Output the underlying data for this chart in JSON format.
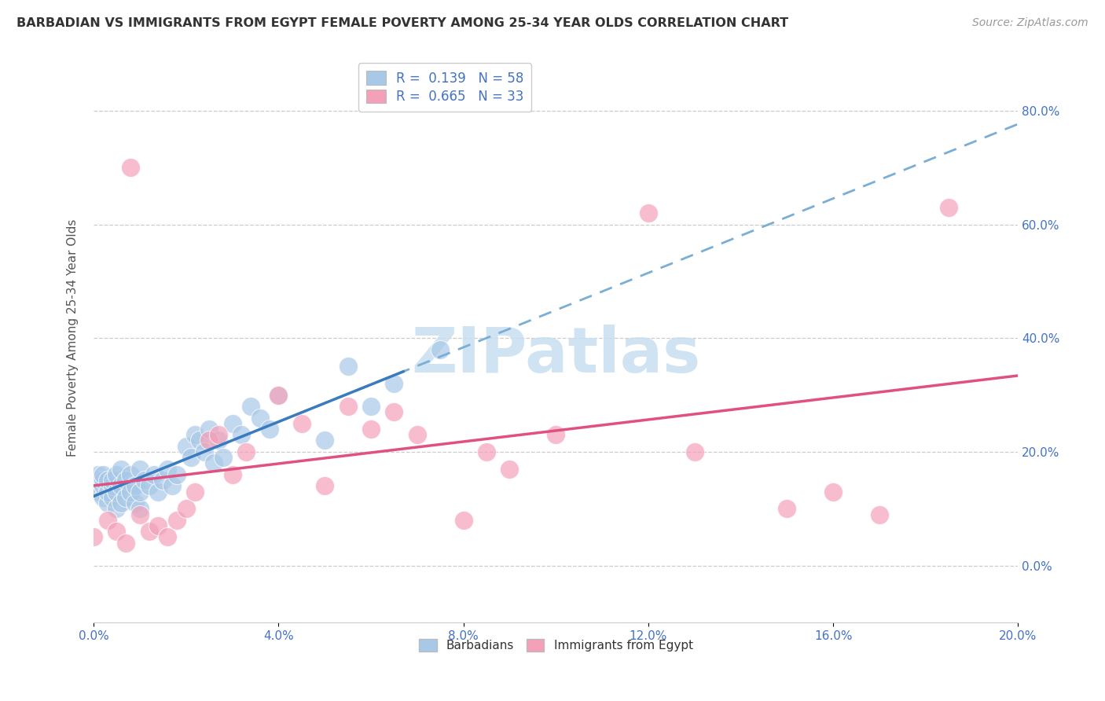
{
  "title": "BARBADIAN VS IMMIGRANTS FROM EGYPT FEMALE POVERTY AMONG 25-34 YEAR OLDS CORRELATION CHART",
  "source": "Source: ZipAtlas.com",
  "ylabel": "Female Poverty Among 25-34 Year Olds",
  "legend1_label": "R =  0.139   N = 58",
  "legend2_label": "R =  0.665   N = 33",
  "blue_color": "#a8c8e8",
  "pink_color": "#f4a0b8",
  "blue_line_color": "#3a7abf",
  "pink_line_color": "#e05080",
  "blue_dash_color": "#7aaed4",
  "watermark_color": "#c8dff0",
  "xlim": [
    0.0,
    0.2
  ],
  "ylim": [
    -0.1,
    0.9
  ],
  "xticks": [
    0.0,
    0.04,
    0.08,
    0.12,
    0.16,
    0.2
  ],
  "yticks": [
    0.0,
    0.2,
    0.4,
    0.6,
    0.8
  ],
  "R_barbadian": 0.139,
  "R_egypt": 0.665,
  "N_barbadian": 58,
  "N_egypt": 33,
  "barb_x": [
    0.0,
    0.0,
    0.001,
    0.001,
    0.001,
    0.002,
    0.002,
    0.002,
    0.002,
    0.003,
    0.003,
    0.003,
    0.004,
    0.004,
    0.004,
    0.005,
    0.005,
    0.005,
    0.006,
    0.006,
    0.006,
    0.007,
    0.007,
    0.008,
    0.008,
    0.009,
    0.009,
    0.01,
    0.01,
    0.01,
    0.011,
    0.012,
    0.013,
    0.014,
    0.015,
    0.016,
    0.017,
    0.018,
    0.02,
    0.021,
    0.022,
    0.023,
    0.024,
    0.025,
    0.026,
    0.027,
    0.028,
    0.03,
    0.032,
    0.034,
    0.036,
    0.038,
    0.04,
    0.05,
    0.055,
    0.06,
    0.065,
    0.075
  ],
  "barb_y": [
    0.14,
    0.15,
    0.13,
    0.15,
    0.16,
    0.12,
    0.14,
    0.15,
    0.16,
    0.11,
    0.13,
    0.15,
    0.12,
    0.14,
    0.15,
    0.1,
    0.13,
    0.16,
    0.11,
    0.14,
    0.17,
    0.12,
    0.15,
    0.13,
    0.16,
    0.11,
    0.14,
    0.1,
    0.13,
    0.17,
    0.15,
    0.14,
    0.16,
    0.13,
    0.15,
    0.17,
    0.14,
    0.16,
    0.21,
    0.19,
    0.23,
    0.22,
    0.2,
    0.24,
    0.18,
    0.22,
    0.19,
    0.25,
    0.23,
    0.28,
    0.26,
    0.24,
    0.3,
    0.22,
    0.35,
    0.28,
    0.32,
    0.38
  ],
  "egypt_x": [
    0.0,
    0.003,
    0.005,
    0.007,
    0.008,
    0.01,
    0.012,
    0.014,
    0.016,
    0.018,
    0.02,
    0.022,
    0.025,
    0.027,
    0.03,
    0.033,
    0.04,
    0.045,
    0.05,
    0.055,
    0.06,
    0.065,
    0.07,
    0.08,
    0.085,
    0.09,
    0.1,
    0.12,
    0.13,
    0.15,
    0.16,
    0.17,
    0.185
  ],
  "egypt_y": [
    0.05,
    0.08,
    0.06,
    0.04,
    0.7,
    0.09,
    0.06,
    0.07,
    0.05,
    0.08,
    0.1,
    0.13,
    0.22,
    0.23,
    0.16,
    0.2,
    0.3,
    0.25,
    0.14,
    0.28,
    0.24,
    0.27,
    0.23,
    0.08,
    0.2,
    0.17,
    0.23,
    0.62,
    0.2,
    0.1,
    0.13,
    0.09,
    0.63
  ]
}
